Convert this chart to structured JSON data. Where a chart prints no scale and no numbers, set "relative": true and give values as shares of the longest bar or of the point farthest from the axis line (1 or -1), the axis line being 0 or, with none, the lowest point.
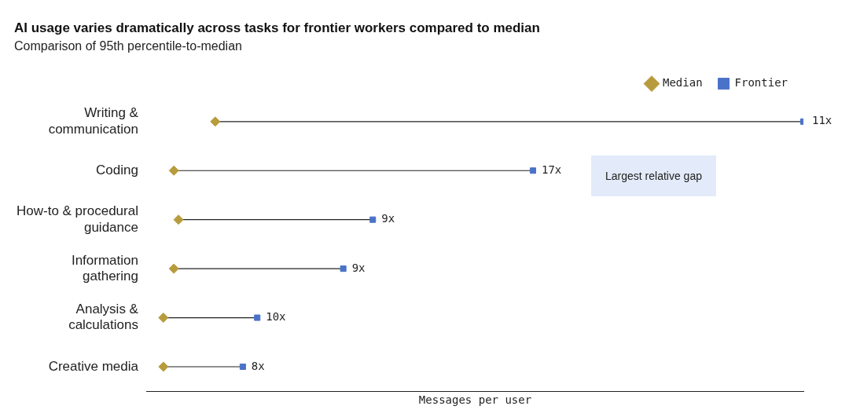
{
  "chart_data": {
    "type": "scatter",
    "title": "AI usage varies dramatically across tasks for frontier workers compared to median",
    "subtitle": "Comparison of 95th percentile-to-median",
    "xlabel": "Messages per user",
    "orientation": "horizontal",
    "relative": true,
    "legend": "top right",
    "categories": [
      "Writing & communication",
      "Coding",
      "How-to & procedural guidance",
      "Information gathering",
      "Analysis & calculations",
      "Creative media"
    ],
    "series": [
      {
        "name": "Median",
        "color": "#b89b3c",
        "marker": "diamond",
        "values": [
          0.104,
          0.041,
          0.048,
          0.041,
          0.025,
          0.025
        ]
      },
      {
        "name": "Frontier",
        "color": "#4a72c8",
        "marker": "square",
        "values": [
          1,
          0.588,
          0.344,
          0.299,
          0.168,
          0.146
        ]
      }
    ],
    "annotations": [
      {
        "text": "11x",
        "x": 1,
        "y": "Writing & communication"
      },
      {
        "text": "17x",
        "x": 0.588,
        "y": "Coding"
      },
      {
        "text": "9x",
        "x": 0.344,
        "y": "How-to & procedural guidance"
      },
      {
        "text": "9x",
        "x": 0.299,
        "y": "Information gathering"
      },
      {
        "text": "10x",
        "x": 0.168,
        "y": "Analysis & calculations"
      },
      {
        "text": "8x",
        "x": 0.146,
        "y": "Creative media"
      },
      "Largest relative gap"
    ]
  }
}
